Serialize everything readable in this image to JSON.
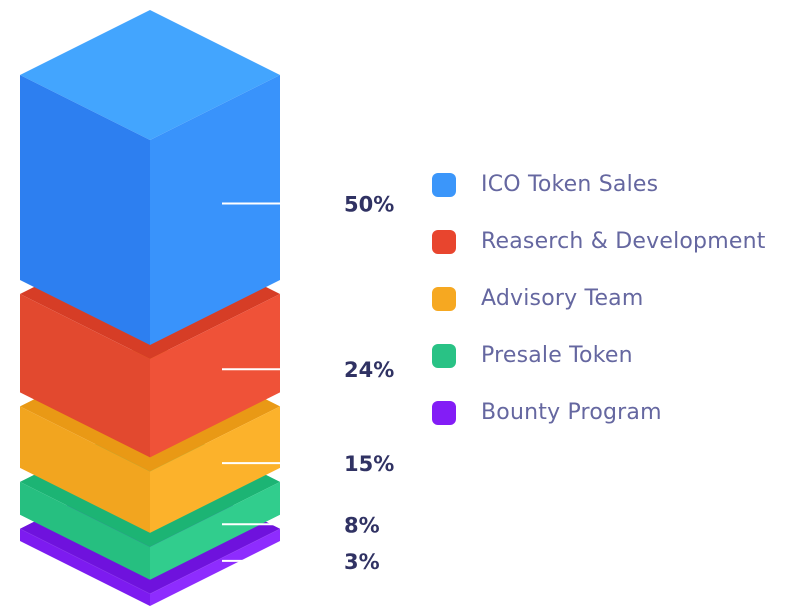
{
  "page": {
    "background": "#ffffff"
  },
  "chart_data": {
    "type": "bar",
    "subtype": "isometric-3d-stacked-column",
    "title": "",
    "categories": [
      "ICO Token Sales",
      "Reaserch & Development",
      "Advisory Team",
      "Presale Token",
      "Bounty Program"
    ],
    "values": [
      50,
      24,
      15,
      8,
      3
    ],
    "total": 100,
    "unit": "%",
    "percent_labels": [
      "50%",
      "24%",
      "15%",
      "8%",
      "3%"
    ],
    "segment_colors": [
      {
        "top": "#43a5fe",
        "left": "#2d7ff0",
        "right": "#3993fb"
      },
      {
        "top": "#d63d26",
        "left": "#e2492f",
        "right": "#ef5238"
      },
      {
        "top": "#e99915",
        "left": "#f2a51f",
        "right": "#fcb22b"
      },
      {
        "top": "#1cb474",
        "left": "#26bf80",
        "right": "#31cd8d"
      },
      {
        "top": "#6f12dd",
        "left": "#7d1bf0",
        "right": "#8e2cfe"
      }
    ],
    "legend_position": "right",
    "legend": [
      {
        "label": "ICO Token Sales",
        "color": "#3b96fa"
      },
      {
        "label": "Reaserch & Development",
        "color": "#e8452e"
      },
      {
        "label": "Advisory Team",
        "color": "#f6a821"
      },
      {
        "label": "Presale Token",
        "color": "#29c285"
      },
      {
        "label": "Bounty Program",
        "color": "#831df6"
      }
    ],
    "connector_color": "#ffffff",
    "percent_label_color": "#303263",
    "legend_label_color": "#6567a0",
    "grid": false
  }
}
